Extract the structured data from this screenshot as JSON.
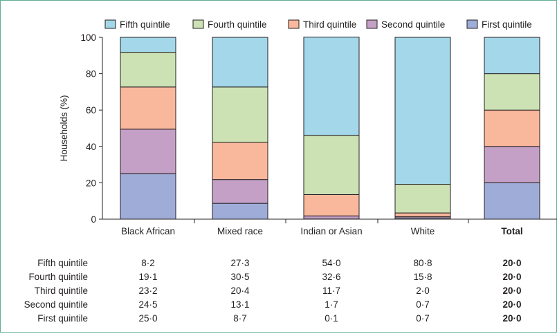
{
  "chart_data": {
    "type": "bar",
    "stacked": true,
    "title": "",
    "xlabel": "",
    "ylabel": "Households (%)",
    "ylim": [
      0,
      100
    ],
    "yticks": [
      "0",
      "20",
      "40",
      "60",
      "80",
      "100"
    ],
    "categories": [
      "Black African",
      "Mixed race",
      "Indian or Asian",
      "White",
      "Total"
    ],
    "bold_category": "Total",
    "legend_position": "top",
    "series": [
      {
        "name": "First quintile",
        "color": "#9eacd7",
        "values": [
          25.0,
          8.7,
          0.1,
          0.7,
          20.0
        ],
        "labels": [
          "25·0",
          "8·7",
          "0·1",
          "0·7",
          "20·0"
        ]
      },
      {
        "name": "Second quintile",
        "color": "#c5a0c6",
        "values": [
          24.5,
          13.1,
          1.7,
          0.7,
          20.0
        ],
        "labels": [
          "24·5",
          "13·1",
          "1·7",
          "0·7",
          "20·0"
        ]
      },
      {
        "name": "Third quintile",
        "color": "#f9b79c",
        "values": [
          23.2,
          20.4,
          11.7,
          2.0,
          20.0
        ],
        "labels": [
          "23·2",
          "20·4",
          "11·7",
          "2·0",
          "20·0"
        ]
      },
      {
        "name": "Fourth quintile",
        "color": "#cce2b4",
        "values": [
          19.1,
          30.5,
          32.6,
          15.8,
          20.0
        ],
        "labels": [
          "19·1",
          "30·5",
          "32·6",
          "15·8",
          "20·0"
        ]
      },
      {
        "name": "Fifth quintile",
        "color": "#a3d7e9",
        "values": [
          8.2,
          27.3,
          54.0,
          80.8,
          20.0
        ],
        "labels": [
          "8·2",
          "27·3",
          "54·0",
          "80·8",
          "20·0"
        ]
      }
    ],
    "legend_order": [
      "Fifth quintile",
      "Fourth quintile",
      "Third quintile",
      "Second quintile",
      "First quintile"
    ],
    "table_row_order": [
      "Fifth quintile",
      "Fourth quintile",
      "Third quintile",
      "Second quintile",
      "First quintile"
    ],
    "frame_color": "#5fae8f",
    "line_color": "#231f20"
  }
}
